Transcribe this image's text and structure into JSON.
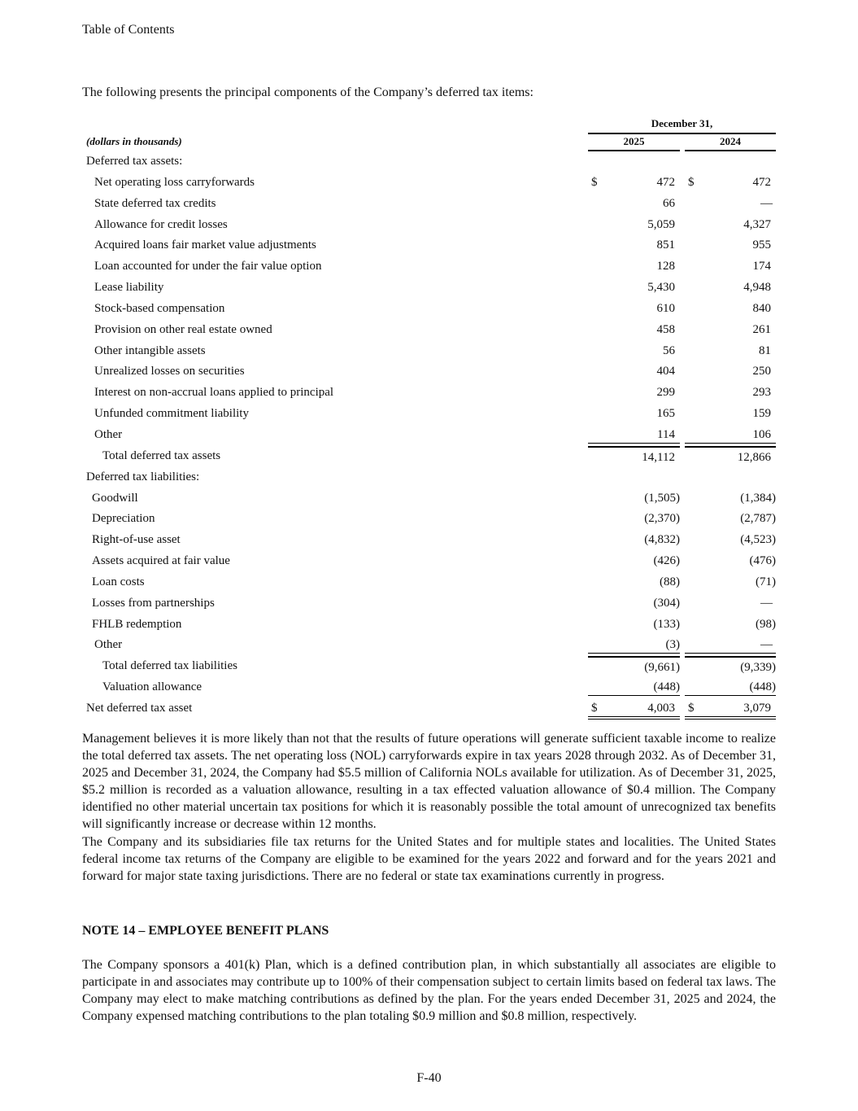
{
  "header": {
    "toc_link": "Table of Contents"
  },
  "intro": "The following presents the principal components of the Company’s deferred tax items:",
  "table": {
    "period_header": "December 31,",
    "units": "(dollars in thousands)",
    "years": [
      "2025",
      "2024"
    ],
    "rows": [
      {
        "label": "Deferred tax assets:",
        "indent": 5,
        "v": [
          "",
          ""
        ]
      },
      {
        "label": "Net operating loss carryforwards",
        "indent": 15,
        "v": [
          "472",
          "472"
        ],
        "dollar": true
      },
      {
        "label": "State deferred tax credits",
        "indent": 15,
        "v": [
          "66",
          "—"
        ]
      },
      {
        "label": "Allowance for credit losses",
        "indent": 15,
        "v": [
          "5,059",
          "4,327"
        ]
      },
      {
        "label": "Acquired loans fair market value adjustments",
        "indent": 15,
        "v": [
          "851",
          "955"
        ]
      },
      {
        "label": "Loan accounted for under the fair value option",
        "indent": 15,
        "v": [
          "128",
          "174"
        ]
      },
      {
        "label": "Lease liability",
        "indent": 15,
        "v": [
          "5,430",
          "4,948"
        ]
      },
      {
        "label": "Stock-based compensation",
        "indent": 15,
        "v": [
          "610",
          "840"
        ]
      },
      {
        "label": "Provision on other real estate owned",
        "indent": 15,
        "v": [
          "458",
          "261"
        ]
      },
      {
        "label": "Other intangible assets",
        "indent": 15,
        "v": [
          "56",
          "81"
        ]
      },
      {
        "label": "Unrealized losses on securities",
        "indent": 15,
        "v": [
          "404",
          "250"
        ]
      },
      {
        "label": "Interest on non-accrual loans applied to principal",
        "indent": 15,
        "v": [
          "299",
          "293"
        ]
      },
      {
        "label": "Unfunded commitment liability",
        "indent": 15,
        "v": [
          "165",
          "159"
        ]
      },
      {
        "label": "Other",
        "indent": 15,
        "v": [
          "114",
          "106"
        ],
        "underline": true
      },
      {
        "label": "Total deferred tax assets",
        "indent": 25,
        "v": [
          "14,112",
          "12,866"
        ]
      },
      {
        "label": "Deferred tax liabilities:",
        "indent": 5,
        "v": [
          "",
          ""
        ]
      },
      {
        "label": "Goodwill",
        "indent": 12,
        "v": [
          "(1,505)",
          "(1,384)"
        ]
      },
      {
        "label": "Depreciation",
        "indent": 12,
        "v": [
          "(2,370)",
          "(2,787)"
        ]
      },
      {
        "label": "Right-of-use asset",
        "indent": 12,
        "v": [
          "(4,832)",
          "(4,523)"
        ]
      },
      {
        "label": "Assets acquired at fair value",
        "indent": 12,
        "v": [
          "(426)",
          "(476)"
        ]
      },
      {
        "label": "Loan costs",
        "indent": 12,
        "v": [
          "(88)",
          "(71)"
        ]
      },
      {
        "label": "Losses from partnerships",
        "indent": 12,
        "v": [
          "(304)",
          "—"
        ]
      },
      {
        "label": "FHLB redemption",
        "indent": 12,
        "v": [
          "(133)",
          "(98)"
        ]
      },
      {
        "label": "Other",
        "indent": 15,
        "v": [
          "(3)",
          "—"
        ],
        "underline": true
      },
      {
        "label": "Total deferred tax liabilities",
        "indent": 25,
        "v": [
          "(9,661)",
          "(9,339)"
        ]
      },
      {
        "label": "Valuation allowance",
        "indent": 25,
        "v": [
          "(448)",
          "(448)"
        ],
        "underline": true
      },
      {
        "label": "Net deferred tax asset",
        "indent": 5,
        "v": [
          "4,003",
          "3,079"
        ],
        "dollar": true,
        "double": true
      }
    ]
  },
  "paragraphs": [
    "Management believes it is more likely than not that the results of future operations will generate sufficient taxable income to realize the total deferred tax assets. The net operating loss (NOL) carryforwards expire in tax years 2028 through 2032. As of December 31, 2025 and December 31, 2024, the Company had $5.5 million of California NOLs available for utilization. As of December 31, 2025, $5.2 million is recorded as a valuation allowance, resulting in a tax effected valuation allowance of $0.4 million. The Company identified no other material uncertain tax positions for which it is reasonably possible the total amount of unrecognized tax benefits will significantly increase or decrease within 12 months.",
    "The Company and its subsidiaries file tax returns for the United States and for multiple states and localities. The United States federal income tax returns of the Company are eligible to be examined for the years 2022 and forward and for the years 2021 and forward for major state taxing jurisdictions. There are no federal or state tax examinations currently in progress.",
    "The Company sponsors a 401(k) Plan, which is a defined contribution plan, in which substantially all associates are eligible to participate in and associates may contribute up to 100% of their compensation subject to certain limits based on federal tax laws. The Company may elect to make matching contributions as defined by the plan. For the years ended December 31, 2025 and 2024, the Company expensed matching contributions to the plan totaling $0.9 million and $0.8 million, respectively."
  ],
  "note_heading": "NOTE 14 – EMPLOYEE BENEFIT PLANS",
  "currency_symbol": "$",
  "page_number": "F-40"
}
